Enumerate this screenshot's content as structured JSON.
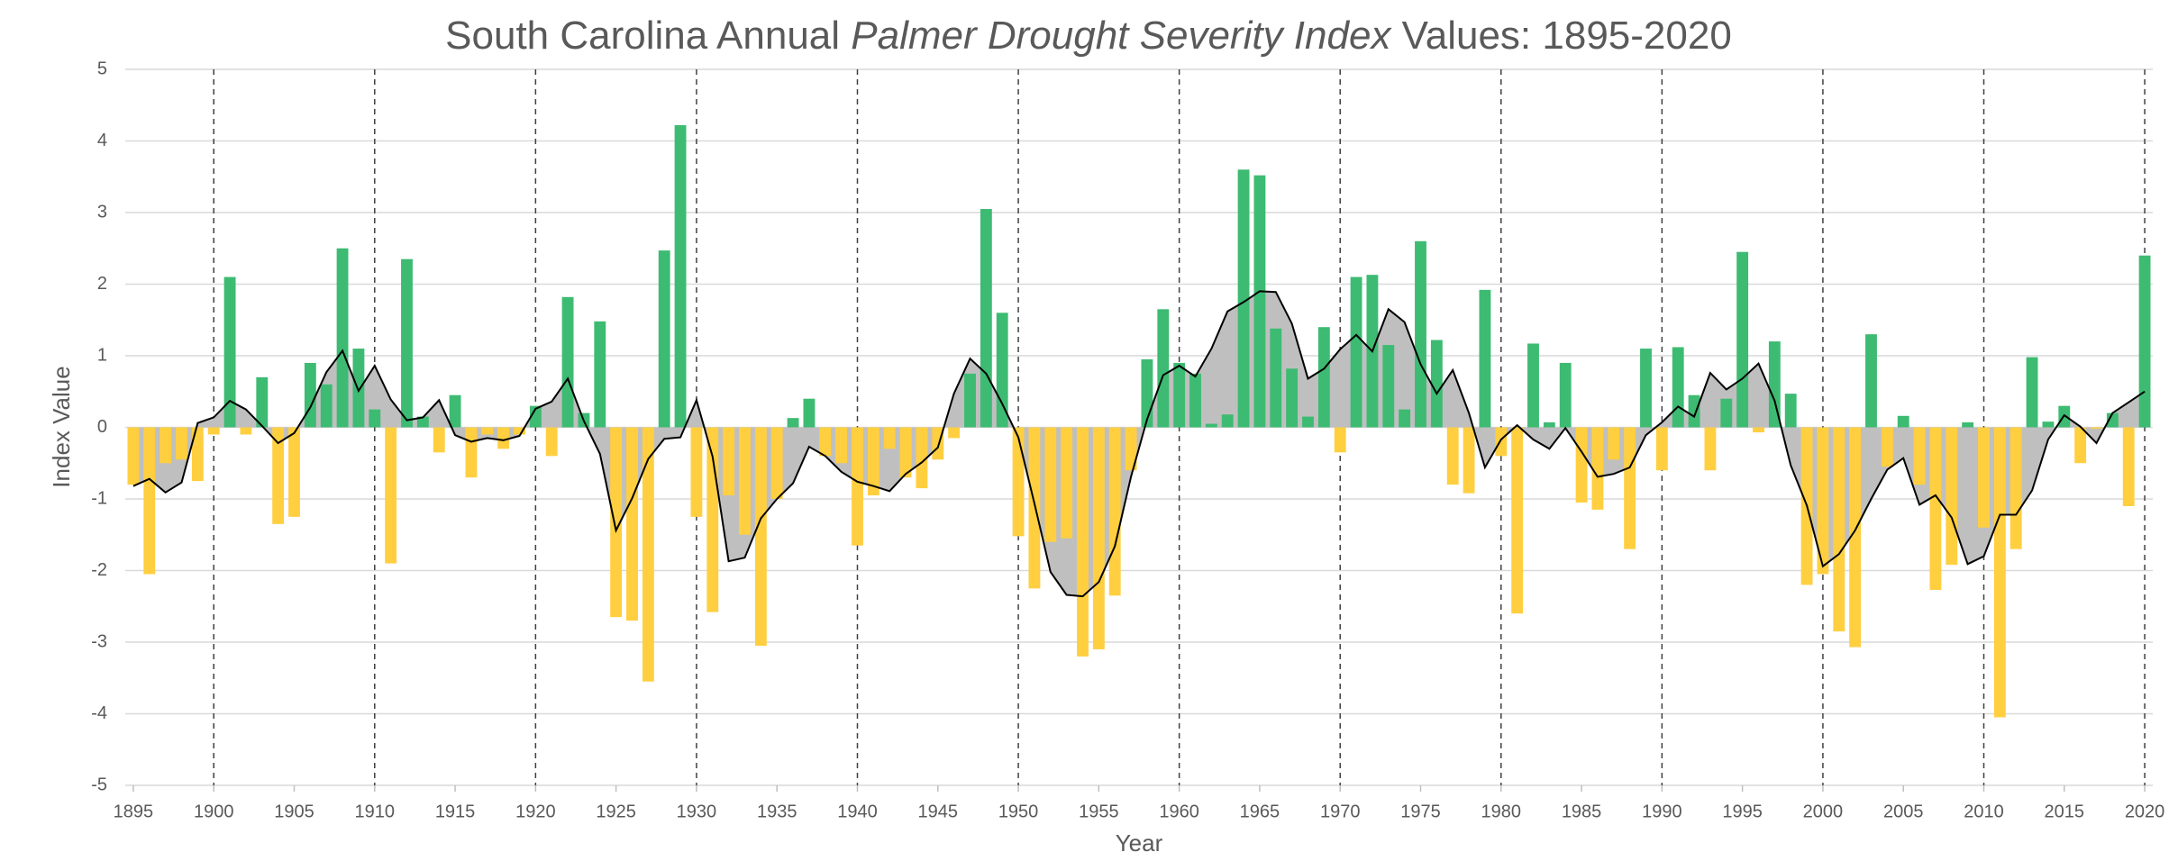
{
  "chart_data": {
    "type": "bar",
    "title": {
      "before": "South Carolina Annual ",
      "italic": "Palmer Drought Severity Index",
      "after": " Values: 1895-2020"
    },
    "x_label": "Year",
    "y_label": "Index Value",
    "x": [
      1895,
      1896,
      1897,
      1898,
      1899,
      1900,
      1901,
      1902,
      1903,
      1904,
      1905,
      1906,
      1907,
      1908,
      1909,
      1910,
      1911,
      1912,
      1913,
      1914,
      1915,
      1916,
      1917,
      1918,
      1919,
      1920,
      1921,
      1922,
      1923,
      1924,
      1925,
      1926,
      1927,
      1928,
      1929,
      1930,
      1931,
      1932,
      1933,
      1934,
      1935,
      1936,
      1937,
      1938,
      1939,
      1940,
      1941,
      1942,
      1943,
      1944,
      1945,
      1946,
      1947,
      1948,
      1949,
      1950,
      1951,
      1952,
      1953,
      1954,
      1955,
      1956,
      1957,
      1958,
      1959,
      1960,
      1961,
      1962,
      1963,
      1964,
      1965,
      1966,
      1967,
      1968,
      1969,
      1970,
      1971,
      1972,
      1973,
      1974,
      1975,
      1976,
      1977,
      1978,
      1979,
      1980,
      1981,
      1982,
      1983,
      1984,
      1985,
      1986,
      1987,
      1988,
      1989,
      1990,
      1991,
      1992,
      1993,
      1994,
      1995,
      1996,
      1997,
      1998,
      1999,
      2000,
      2001,
      2002,
      2003,
      2004,
      2005,
      2006,
      2007,
      2008,
      2009,
      2010,
      2011,
      2012,
      2013,
      2014,
      2015,
      2016,
      2017,
      2018,
      2019,
      2020
    ],
    "values": [
      -0.8,
      -2.05,
      -0.5,
      -0.45,
      -0.75,
      -0.1,
      2.1,
      -0.1,
      0.7,
      -1.35,
      -1.25,
      0.9,
      0.6,
      2.5,
      1.1,
      0.25,
      -1.9,
      2.35,
      0.15,
      -0.35,
      0.45,
      -0.7,
      -0.1,
      -0.3,
      -0.1,
      0.3,
      -0.4,
      1.82,
      0.2,
      1.48,
      -2.65,
      -2.7,
      -3.55,
      2.47,
      4.22,
      -1.25,
      -2.58,
      -0.95,
      -1.5,
      -3.05,
      -1.0,
      0.13,
      0.4,
      -0.4,
      -0.5,
      -1.65,
      -0.95,
      -0.3,
      -0.7,
      -0.85,
      -0.45,
      -0.15,
      0.75,
      3.05,
      1.6,
      -1.52,
      -2.25,
      -1.6,
      -1.55,
      -3.2,
      -3.1,
      -2.35,
      -0.6,
      0.95,
      1.65,
      0.9,
      0.75,
      0.05,
      0.18,
      3.6,
      3.52,
      1.38,
      0.82,
      0.15,
      1.4,
      -0.35,
      2.1,
      2.13,
      1.15,
      0.25,
      2.6,
      1.22,
      -0.8,
      -0.92,
      1.92,
      -0.4,
      -2.6,
      1.17,
      0.07,
      0.9,
      -1.05,
      -1.15,
      -0.45,
      -1.7,
      1.1,
      -0.6,
      1.12,
      0.45,
      -0.6,
      0.4,
      2.45,
      -0.07,
      1.2,
      0.47,
      -2.2,
      -2.05,
      -2.85,
      -3.07,
      1.3,
      -0.55,
      0.16,
      -0.8,
      -2.27,
      -1.92,
      0.07,
      -1.4,
      -4.05,
      -1.7,
      0.98,
      0.08,
      0.3,
      -0.5,
      -0.02,
      0.2,
      -1.1,
      2.4
    ],
    "positive_color": "#3dbb72",
    "negative_color": "#ffcf40",
    "trend": {
      "type": "line",
      "color": "#000000",
      "area_color": "#bfbfbf",
      "values": [
        -0.82,
        -0.72,
        -0.91,
        -0.77,
        0.06,
        0.14,
        0.37,
        0.25,
        0.02,
        -0.22,
        -0.08,
        0.28,
        0.77,
        1.07,
        0.51,
        0.86,
        0.39,
        0.1,
        0.14,
        0.38,
        -0.11,
        -0.2,
        -0.15,
        -0.18,
        -0.12,
        0.26,
        0.36,
        0.68,
        0.09,
        -0.37,
        -1.44,
        -0.99,
        -0.44,
        -0.16,
        -0.14,
        0.38,
        -0.41,
        -1.87,
        -1.82,
        -1.27,
        -1.0,
        -0.78,
        -0.27,
        -0.4,
        -0.62,
        -0.76,
        -0.82,
        -0.89,
        -0.65,
        -0.49,
        -0.28,
        0.47,
        0.96,
        0.75,
        0.33,
        -0.14,
        -1.06,
        -2.02,
        -2.34,
        -2.36,
        -2.16,
        -1.66,
        -0.69,
        0.11,
        0.73,
        0.86,
        0.71,
        1.1,
        1.62,
        1.75,
        1.9,
        1.89,
        1.45,
        0.68,
        0.82,
        1.09,
        1.29,
        1.06,
        1.65,
        1.47,
        0.88,
        0.47,
        0.8,
        0.2,
        -0.56,
        -0.17,
        0.03,
        -0.17,
        -0.3,
        -0.01,
        -0.34,
        -0.69,
        -0.65,
        -0.56,
        -0.11,
        0.07,
        0.29,
        0.15,
        0.76,
        0.53,
        0.68,
        0.89,
        0.37,
        -0.53,
        -1.09,
        -1.94,
        -1.77,
        -1.44,
        -1.0,
        -0.59,
        -0.43,
        -1.08,
        -0.95,
        -1.26,
        -1.91,
        -1.8,
        -1.22,
        -1.22,
        -0.88,
        -0.17,
        0.17,
        0.01,
        -0.22,
        0.2,
        0.35,
        0.5
      ]
    },
    "xlim": [
      1894.5,
      2020.5
    ],
    "ylim": [
      -5,
      5
    ],
    "xticks": [
      1895,
      1900,
      1905,
      1910,
      1915,
      1920,
      1925,
      1930,
      1935,
      1940,
      1945,
      1950,
      1955,
      1960,
      1965,
      1970,
      1975,
      1980,
      1985,
      1990,
      1995,
      2000,
      2005,
      2010,
      2015,
      2020
    ],
    "yticks": [
      -5,
      -4,
      -3,
      -2,
      -1,
      0,
      1,
      2,
      3,
      4,
      5
    ],
    "decade_lines": [
      1900,
      1910,
      1920,
      1930,
      1940,
      1950,
      1960,
      1970,
      1980,
      1990,
      2000,
      2010,
      2020
    ],
    "grid": true
  }
}
